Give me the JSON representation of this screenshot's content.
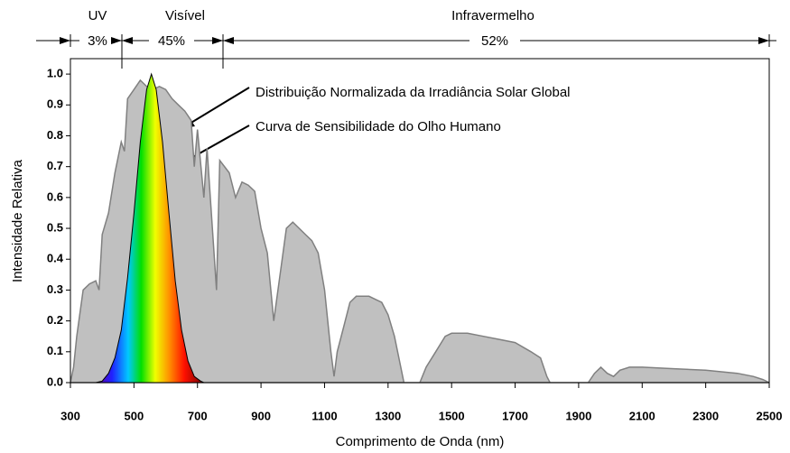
{
  "chart_data": {
    "type": "area",
    "annotations": [
      "Distribuição Normalizada da Irradiância Solar Global",
      "Curva de Sensibilidade do Olho Humano"
    ],
    "regions": [
      "UV",
      "Visível",
      "Infravermelho"
    ],
    "region_shares": [
      3,
      45,
      52
    ],
    "region_share_labels": [
      "3%",
      "45%",
      "52%"
    ],
    "xlabel": "Comprimento de Onda (nm)",
    "ylabel": "Intensidade Relativa",
    "xlim": [
      300,
      2500
    ],
    "ylim": [
      0,
      1.05
    ],
    "xticks": [
      300,
      500,
      700,
      900,
      1100,
      1300,
      1500,
      1700,
      1900,
      2100,
      2300,
      2500
    ],
    "yticks": [
      {
        "value": 0,
        "label": "0.0"
      },
      0.1,
      0.2,
      0.3,
      0.4,
      0.5,
      0.6,
      0.7,
      0.8,
      0.9,
      {
        "value": 1,
        "label": "1.0"
      }
    ],
    "series": [
      {
        "color": "#c0c0c0",
        "x": [
          300,
          310,
          320,
          340,
          360,
          380,
          390,
          400,
          420,
          440,
          460,
          470,
          480,
          500,
          520,
          540,
          560,
          580,
          600,
          620,
          640,
          660,
          680,
          690,
          700,
          720,
          730,
          760,
          770,
          800,
          820,
          840,
          860,
          880,
          900,
          920,
          940,
          960,
          980,
          1000,
          1020,
          1040,
          1060,
          1080,
          1100,
          1120,
          1130,
          1140,
          1160,
          1180,
          1200,
          1220,
          1240,
          1260,
          1280,
          1300,
          1320,
          1340,
          1350,
          1400,
          1420,
          1450,
          1480,
          1500,
          1550,
          1600,
          1650,
          1700,
          1750,
          1780,
          1800,
          1810,
          1930,
          1950,
          1970,
          1990,
          2010,
          2030,
          2060,
          2100,
          2200,
          2300,
          2400,
          2450,
          2480,
          2500
        ],
        "values": [
          0,
          0.05,
          0.15,
          0.3,
          0.32,
          0.33,
          0.3,
          0.48,
          0.55,
          0.68,
          0.78,
          0.75,
          0.92,
          0.95,
          0.98,
          0.96,
          0.95,
          0.96,
          0.95,
          0.92,
          0.9,
          0.88,
          0.85,
          0.7,
          0.82,
          0.6,
          0.76,
          0.3,
          0.72,
          0.68,
          0.6,
          0.65,
          0.64,
          0.62,
          0.5,
          0.42,
          0.2,
          0.35,
          0.5,
          0.52,
          0.5,
          0.48,
          0.46,
          0.42,
          0.3,
          0.1,
          0.02,
          0.1,
          0.18,
          0.26,
          0.28,
          0.28,
          0.28,
          0.27,
          0.26,
          0.22,
          0.15,
          0.05,
          0,
          0,
          0.05,
          0.1,
          0.15,
          0.16,
          0.16,
          0.15,
          0.14,
          0.13,
          0.1,
          0.08,
          0.02,
          0,
          0,
          0.03,
          0.05,
          0.03,
          0.02,
          0.04,
          0.05,
          0.05,
          0.045,
          0.04,
          0.03,
          0.02,
          0.01,
          0
        ]
      },
      {
        "x": [
          380,
          400,
          420,
          440,
          460,
          480,
          500,
          520,
          540,
          555,
          570,
          590,
          610,
          630,
          650,
          670,
          690,
          710,
          720
        ],
        "values": [
          0,
          0.005,
          0.03,
          0.08,
          0.17,
          0.34,
          0.55,
          0.78,
          0.95,
          1,
          0.95,
          0.78,
          0.55,
          0.33,
          0.17,
          0.07,
          0.02,
          0.005,
          0
        ]
      }
    ]
  }
}
